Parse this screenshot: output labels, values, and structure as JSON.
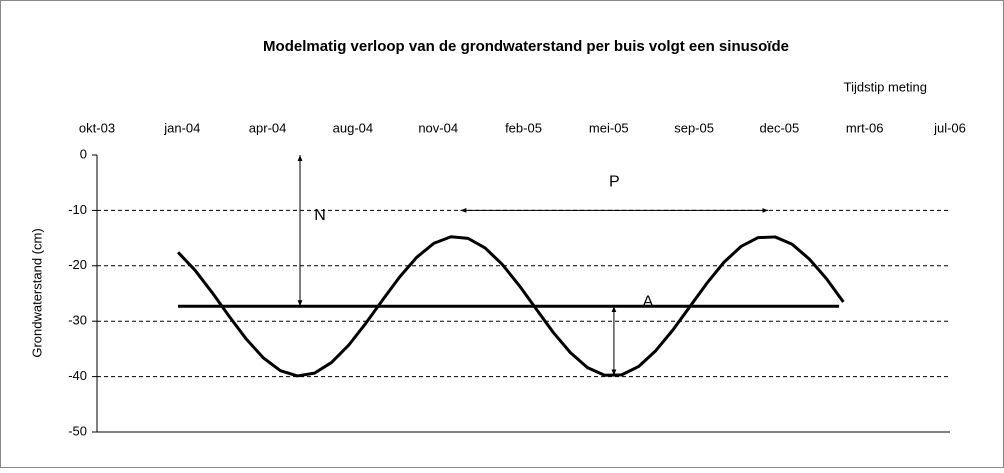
{
  "chart_data": {
    "type": "line",
    "title": "Modelmatig verloop van de grondwaterstand per buis volgt een sinusoïde",
    "x_label": "Tijdstip meting",
    "y_label": "Grondwaterstand (cm)",
    "xlim": [
      0,
      10
    ],
    "xticks": [
      {
        "value": 0,
        "label": "okt-03"
      },
      {
        "value": 1,
        "label": "jan-04"
      },
      {
        "value": 2,
        "label": "apr-04"
      },
      {
        "value": 3,
        "label": "aug-04"
      },
      {
        "value": 4,
        "label": "nov-04"
      },
      {
        "value": 5,
        "label": "feb-05"
      },
      {
        "value": 6,
        "label": "mei-05"
      },
      {
        "value": 7,
        "label": "sep-05"
      },
      {
        "value": 8,
        "label": "dec-05"
      },
      {
        "value": 9,
        "label": "mrt-06"
      },
      {
        "value": 10,
        "label": "jul-06"
      }
    ],
    "ylim": [
      -50,
      0
    ],
    "yticks": [
      0,
      -10,
      -20,
      -30,
      -40,
      -50
    ],
    "grid": true,
    "series": [
      {
        "color": "#000000",
        "x": [
          0.95,
          1.15,
          1.35,
          1.55,
          1.75,
          1.95,
          2.15,
          2.35,
          2.55,
          2.75,
          2.95,
          3.15,
          3.35,
          3.55,
          3.75,
          3.95,
          4.15,
          4.35,
          4.55,
          4.75,
          4.95,
          5.15,
          5.35,
          5.55,
          5.75,
          5.95,
          6.15,
          6.35,
          6.55,
          6.75,
          6.95,
          7.15,
          7.35,
          7.55,
          7.75,
          7.95,
          8.15,
          8.35,
          8.55,
          8.75
        ],
        "values": [
          -17.56,
          -20.81,
          -24.83,
          -29.13,
          -33.22,
          -36.62,
          -38.93,
          -39.88,
          -39.37,
          -37.44,
          -34.34,
          -30.4,
          -26.12,
          -21.97,
          -18.44,
          -15.93,
          -14.76,
          -15.05,
          -16.78,
          -19.73,
          -23.56,
          -27.83,
          -32.05,
          -35.67,
          -38.38,
          -39.76,
          -39.69,
          -38.17,
          -35.33,
          -31.61,
          -27.38,
          -23.14,
          -19.36,
          -16.51,
          -14.91,
          -14.79,
          -16.12,
          -18.77,
          -22.3,
          -26.53
        ]
      },
      {
        "color": "#000000",
        "x": [
          0.95,
          8.7
        ],
        "values": [
          -27.3,
          -27.3
        ]
      }
    ],
    "annotations": [
      {
        "text": "N",
        "x": [
          2.38,
          2.38
        ],
        "y": [
          0,
          -27.3
        ]
      },
      {
        "text": "P",
        "x": [
          4.26,
          7.87
        ],
        "y": [
          -10,
          -10
        ]
      },
      {
        "text": "A",
        "x": [
          6.06,
          6.06
        ],
        "y": [
          -27.3,
          -39.8
        ]
      }
    ]
  }
}
